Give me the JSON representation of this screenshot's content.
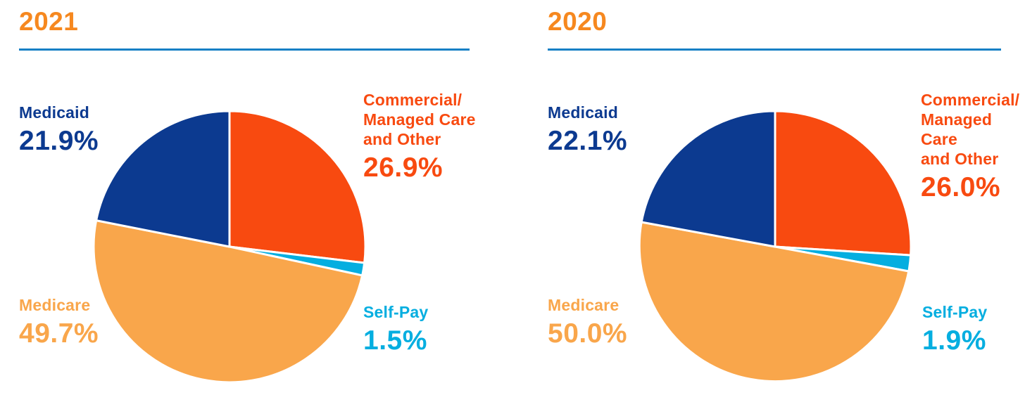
{
  "page": {
    "background": "#FFFFFF"
  },
  "theme": {
    "title_color": "#F6881F",
    "divider_color": "#1780C5"
  },
  "chart_data": [
    {
      "type": "pie",
      "title": "2021",
      "start_angle_deg": 0,
      "direction": "clockwise",
      "grid": false,
      "legend_position": "around",
      "slices": [
        {
          "label": "Commercial/\nManaged Care\nand Other",
          "value": 26.9,
          "display": "26.9%",
          "color": "#F84A10"
        },
        {
          "label": "Self-Pay",
          "value": 1.5,
          "display": "1.5%",
          "color": "#05AEE0"
        },
        {
          "label": "Medicare",
          "value": 49.7,
          "display": "49.7%",
          "color": "#F9A64B"
        },
        {
          "label": "Medicaid",
          "value": 21.9,
          "display": "21.9%",
          "color": "#0C3A90"
        }
      ]
    },
    {
      "type": "pie",
      "title": "2020",
      "start_angle_deg": 0,
      "direction": "clockwise",
      "grid": false,
      "legend_position": "around",
      "slices": [
        {
          "label": "Commercial/\nManaged Care\nand Other",
          "value": 26.0,
          "display": "26.0%",
          "color": "#F84A10"
        },
        {
          "label": "Self-Pay",
          "value": 1.9,
          "display": "1.9%",
          "color": "#05AEE0"
        },
        {
          "label": "Medicare",
          "value": 50.0,
          "display": "50.0%",
          "color": "#F9A64B"
        },
        {
          "label": "Medicaid",
          "value": 22.1,
          "display": "22.1%",
          "color": "#0C3A90"
        }
      ]
    }
  ]
}
